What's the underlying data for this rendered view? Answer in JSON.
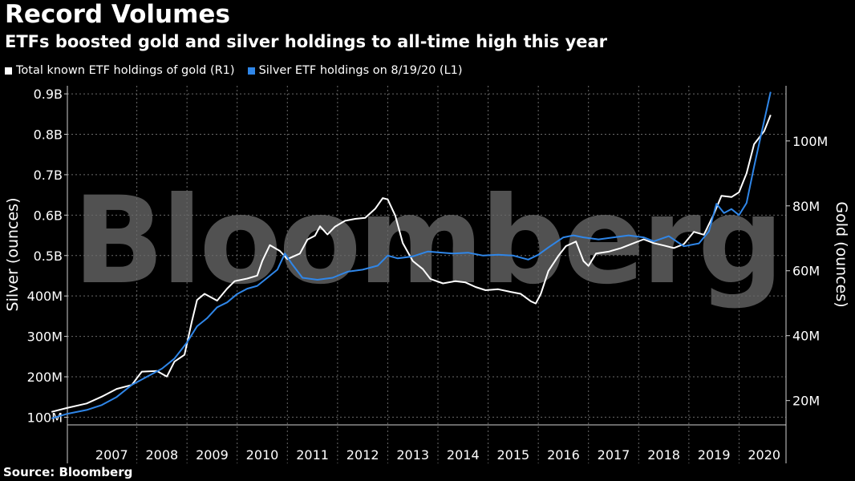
{
  "header": {
    "title": "Record Volumes",
    "subtitle": "ETFs boosted gold and silver holdings to all-time high this year"
  },
  "watermark": "Bloomberg",
  "source": "Source: Bloomberg",
  "colors": {
    "background": "#000000",
    "gold_series": "#ffffff",
    "silver_series": "#2f86e8",
    "grid": "#6a6a6a",
    "watermark": "#5a5a5a"
  },
  "chart_data": {
    "type": "line",
    "x_categories": [
      "2007",
      "2008",
      "2009",
      "2010",
      "2011",
      "2012",
      "2013",
      "2014",
      "2015",
      "2016",
      "2017",
      "2018",
      "2019",
      "2020"
    ],
    "left_axis": {
      "label": "Silver (ounces)",
      "ticks": [
        "100M",
        "200M",
        "300M",
        "400M",
        "0.5B",
        "0.6B",
        "0.7B",
        "0.8B",
        "0.9B"
      ],
      "tick_values": [
        100,
        200,
        300,
        400,
        500,
        600,
        700,
        800,
        900
      ],
      "range": [
        85,
        920
      ]
    },
    "right_axis": {
      "label": "Gold (ounces)",
      "ticks": [
        "20M",
        "40M",
        "60M",
        "80M",
        "100M"
      ],
      "tick_values": [
        20,
        40,
        60,
        80,
        100
      ],
      "range": [
        13,
        117
      ]
    },
    "legend_position": "top-left",
    "grid": true,
    "series": [
      {
        "name": "Total known ETF holdings of gold (R1)",
        "axis": "right",
        "points": [
          [
            2006.3,
            16.5
          ],
          [
            2006.6,
            17.7
          ],
          [
            2007.0,
            19.1
          ],
          [
            2007.3,
            21.2
          ],
          [
            2007.6,
            23.6
          ],
          [
            2007.9,
            24.8
          ],
          [
            2008.1,
            28.9
          ],
          [
            2008.4,
            29.1
          ],
          [
            2008.6,
            27.4
          ],
          [
            2008.75,
            32.0
          ],
          [
            2008.95,
            34.1
          ],
          [
            2009.1,
            44.6
          ],
          [
            2009.2,
            51.0
          ],
          [
            2009.35,
            52.9
          ],
          [
            2009.6,
            50.8
          ],
          [
            2009.8,
            54.5
          ],
          [
            2009.95,
            56.8
          ],
          [
            2010.2,
            57.6
          ],
          [
            2010.4,
            58.5
          ],
          [
            2010.5,
            63.0
          ],
          [
            2010.65,
            67.9
          ],
          [
            2010.85,
            66.1
          ],
          [
            2011.0,
            63.6
          ],
          [
            2011.25,
            65.3
          ],
          [
            2011.4,
            69.6
          ],
          [
            2011.55,
            70.8
          ],
          [
            2011.65,
            73.7
          ],
          [
            2011.8,
            71.2
          ],
          [
            2011.95,
            73.6
          ],
          [
            2012.15,
            75.4
          ],
          [
            2012.35,
            76.0
          ],
          [
            2012.55,
            76.3
          ],
          [
            2012.75,
            79.1
          ],
          [
            2012.9,
            82.4
          ],
          [
            2013.0,
            82.0
          ],
          [
            2013.15,
            77.0
          ],
          [
            2013.3,
            68.5
          ],
          [
            2013.5,
            63.0
          ],
          [
            2013.7,
            60.5
          ],
          [
            2013.85,
            57.5
          ],
          [
            2014.1,
            56.1
          ],
          [
            2014.35,
            56.8
          ],
          [
            2014.55,
            56.4
          ],
          [
            2014.75,
            55.0
          ],
          [
            2014.95,
            54.0
          ],
          [
            2015.2,
            54.3
          ],
          [
            2015.45,
            53.5
          ],
          [
            2015.65,
            52.9
          ],
          [
            2015.85,
            50.6
          ],
          [
            2015.95,
            49.9
          ],
          [
            2016.05,
            52.9
          ],
          [
            2016.2,
            59.9
          ],
          [
            2016.4,
            64.6
          ],
          [
            2016.55,
            67.6
          ],
          [
            2016.75,
            69.0
          ],
          [
            2016.9,
            63.0
          ],
          [
            2017.0,
            61.5
          ],
          [
            2017.15,
            65.3
          ],
          [
            2017.4,
            65.9
          ],
          [
            2017.65,
            67.0
          ],
          [
            2017.9,
            68.5
          ],
          [
            2018.1,
            69.7
          ],
          [
            2018.3,
            68.5
          ],
          [
            2018.5,
            67.8
          ],
          [
            2018.7,
            67.0
          ],
          [
            2018.9,
            68.2
          ],
          [
            2019.1,
            72.0
          ],
          [
            2019.3,
            71.1
          ],
          [
            2019.5,
            77.5
          ],
          [
            2019.65,
            83.1
          ],
          [
            2019.85,
            82.7
          ],
          [
            2020.0,
            84.2
          ],
          [
            2020.15,
            90.0
          ],
          [
            2020.3,
            99.0
          ],
          [
            2020.5,
            103.0
          ],
          [
            2020.63,
            108.0
          ]
        ]
      },
      {
        "name": "Silver ETF holdings on 8/19/20 (L1)",
        "axis": "left",
        "points": [
          [
            2006.3,
            97
          ],
          [
            2006.6,
            108
          ],
          [
            2007.0,
            118
          ],
          [
            2007.3,
            130
          ],
          [
            2007.6,
            150
          ],
          [
            2007.9,
            180
          ],
          [
            2008.2,
            200
          ],
          [
            2008.5,
            220
          ],
          [
            2008.75,
            245
          ],
          [
            2009.0,
            285
          ],
          [
            2009.2,
            325
          ],
          [
            2009.4,
            345
          ],
          [
            2009.6,
            372
          ],
          [
            2009.8,
            384
          ],
          [
            2010.0,
            405
          ],
          [
            2010.2,
            418
          ],
          [
            2010.4,
            425
          ],
          [
            2010.6,
            445
          ],
          [
            2010.8,
            465
          ],
          [
            2010.95,
            505
          ],
          [
            2011.1,
            478
          ],
          [
            2011.3,
            445
          ],
          [
            2011.6,
            440
          ],
          [
            2011.9,
            445
          ],
          [
            2012.2,
            460
          ],
          [
            2012.5,
            465
          ],
          [
            2012.8,
            475
          ],
          [
            2013.0,
            500
          ],
          [
            2013.2,
            493
          ],
          [
            2013.5,
            498
          ],
          [
            2013.8,
            510
          ],
          [
            2014.1,
            507
          ],
          [
            2014.3,
            505
          ],
          [
            2014.6,
            507
          ],
          [
            2014.9,
            500
          ],
          [
            2015.2,
            502
          ],
          [
            2015.5,
            500
          ],
          [
            2015.8,
            490
          ],
          [
            2016.0,
            502
          ],
          [
            2016.2,
            520
          ],
          [
            2016.5,
            545
          ],
          [
            2016.7,
            550
          ],
          [
            2016.9,
            545
          ],
          [
            2017.2,
            540
          ],
          [
            2017.5,
            545
          ],
          [
            2017.8,
            550
          ],
          [
            2018.1,
            545
          ],
          [
            2018.3,
            535
          ],
          [
            2018.6,
            548
          ],
          [
            2018.9,
            523
          ],
          [
            2019.2,
            530
          ],
          [
            2019.4,
            560
          ],
          [
            2019.55,
            628
          ],
          [
            2019.7,
            605
          ],
          [
            2019.85,
            615
          ],
          [
            2020.0,
            600
          ],
          [
            2020.15,
            630
          ],
          [
            2020.3,
            720
          ],
          [
            2020.45,
            805
          ],
          [
            2020.63,
            905
          ]
        ]
      }
    ]
  }
}
